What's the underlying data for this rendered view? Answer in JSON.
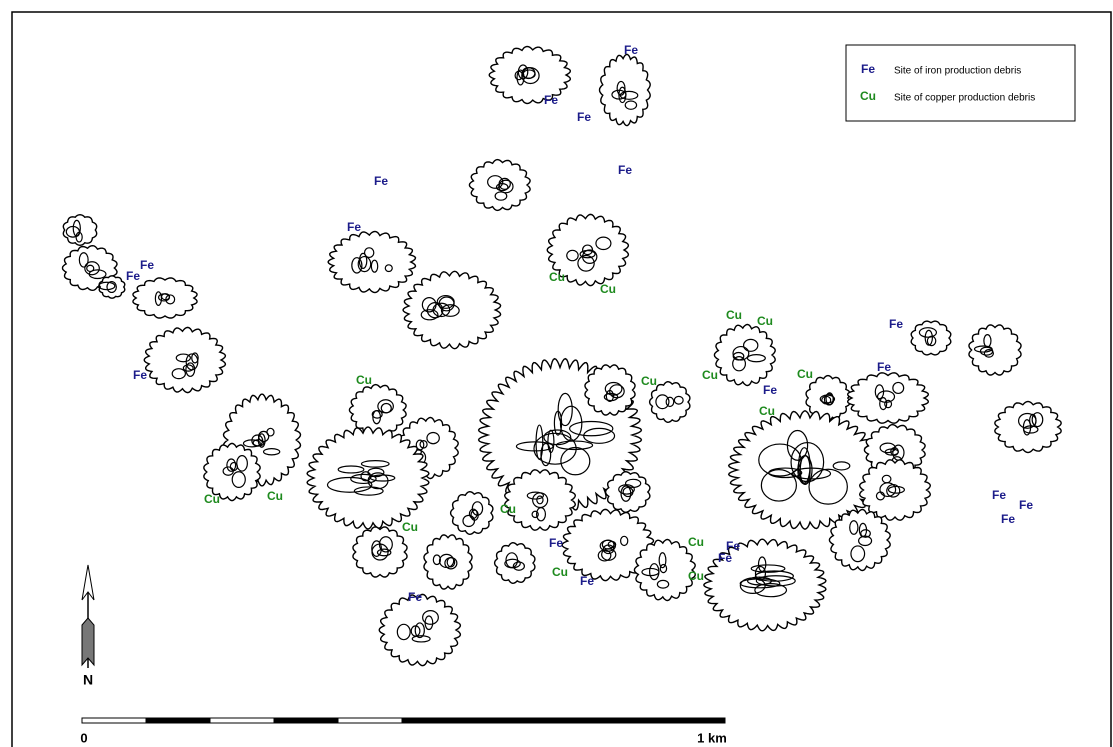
{
  "legend": [
    {
      "symbol": "Fe",
      "text": "Site of iron production debris",
      "color": "#1c1c8a"
    },
    {
      "symbol": "Cu",
      "text": "Site of copper production debris",
      "color": "#1e8a1e"
    }
  ],
  "site_labels": [
    "Fe",
    "Fe",
    "Fe",
    "Fe",
    "Fe",
    "Fe",
    "Fe",
    "Fe",
    "Fe",
    "Fe",
    "Fe",
    "Fe",
    "Fe",
    "Fe",
    "Fe",
    "Fe",
    "Fe",
    "Fe",
    "Fe",
    "Fe",
    "Cu",
    "Cu",
    "Cu",
    "Cu",
    "Cu",
    "Cu",
    "Cu",
    "Cu",
    "Cu",
    "Cu",
    "Cu",
    "Cu",
    "Cu",
    "Cu",
    "Cu",
    "Cu"
  ],
  "north": "N",
  "scale_bar": {
    "start_label": "0",
    "end_label": "1 km"
  }
}
